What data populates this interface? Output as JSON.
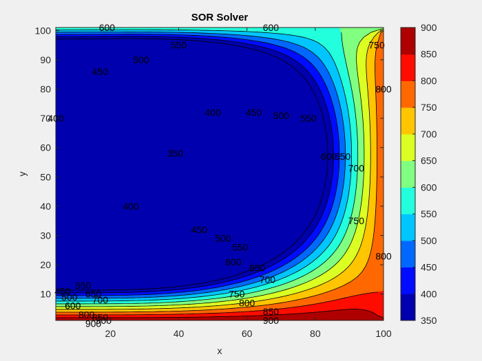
{
  "chart_data": {
    "type": "contour",
    "title": "SOR Solver",
    "xlabel": "x",
    "ylabel": "y",
    "xlim": [
      4,
      100
    ],
    "ylim": [
      1,
      101
    ],
    "x_ticks": [
      20,
      40,
      60,
      80,
      100
    ],
    "y_ticks": [
      10,
      20,
      30,
      40,
      50,
      60,
      70,
      80,
      90,
      100
    ],
    "colormap": "jet",
    "colorbar": {
      "range": [
        350,
        900
      ],
      "ticks": [
        350,
        400,
        450,
        500,
        550,
        600,
        650,
        700,
        750,
        800,
        850,
        900
      ],
      "placement": "right"
    },
    "contour_levels": [
      350,
      400,
      450,
      500,
      550,
      600,
      650,
      700,
      750,
      800,
      850,
      900
    ],
    "boundary_values": {
      "top": 600,
      "bottom": 900,
      "right": 800
    },
    "contour_labels": [
      {
        "text": "600",
        "x": 19,
        "y": 101
      },
      {
        "text": "600",
        "x": 67,
        "y": 101
      },
      {
        "text": "550",
        "x": 40,
        "y": 95
      },
      {
        "text": "500",
        "x": 29,
        "y": 90
      },
      {
        "text": "450",
        "x": 17,
        "y": 86
      },
      {
        "text": "400",
        "x": 4,
        "y": 70
      },
      {
        "text": "400",
        "x": 50,
        "y": 72
      },
      {
        "text": "450",
        "x": 62,
        "y": 72
      },
      {
        "text": "500",
        "x": 70,
        "y": 71
      },
      {
        "text": "550",
        "x": 78,
        "y": 70
      },
      {
        "text": "350",
        "x": 39,
        "y": 58
      },
      {
        "text": "600",
        "x": 84,
        "y": 57
      },
      {
        "text": "650",
        "x": 88,
        "y": 57
      },
      {
        "text": "700",
        "x": 92,
        "y": 53
      },
      {
        "text": "750",
        "x": 98,
        "y": 95
      },
      {
        "text": "800",
        "x": 100,
        "y": 80
      },
      {
        "text": "400",
        "x": 26,
        "y": 40
      },
      {
        "text": "450",
        "x": 46,
        "y": 32
      },
      {
        "text": "500",
        "x": 53,
        "y": 29
      },
      {
        "text": "550",
        "x": 58,
        "y": 26
      },
      {
        "text": "600",
        "x": 56,
        "y": 21
      },
      {
        "text": "650",
        "x": 63,
        "y": 19
      },
      {
        "text": "700",
        "x": 66,
        "y": 15
      },
      {
        "text": "750",
        "x": 92,
        "y": 35
      },
      {
        "text": "800",
        "x": 100,
        "y": 23
      },
      {
        "text": "750",
        "x": 57,
        "y": 10
      },
      {
        "text": "800",
        "x": 60,
        "y": 7
      },
      {
        "text": "850",
        "x": 67,
        "y": 4
      },
      {
        "text": "900",
        "x": 67,
        "y": 1
      },
      {
        "text": "450",
        "x": 6,
        "y": 11
      },
      {
        "text": "500",
        "x": 8,
        "y": 9
      },
      {
        "text": "550",
        "x": 12,
        "y": 13
      },
      {
        "text": "600",
        "x": 9,
        "y": 6
      },
      {
        "text": "650",
        "x": 15,
        "y": 10
      },
      {
        "text": "700",
        "x": 17,
        "y": 8
      },
      {
        "text": "800",
        "x": 13,
        "y": 3
      },
      {
        "text": "850",
        "x": 17,
        "y": 2
      },
      {
        "text": "900",
        "x": 18,
        "y": 1
      },
      {
        "text": "900",
        "x": 15,
        "y": 0
      }
    ]
  }
}
